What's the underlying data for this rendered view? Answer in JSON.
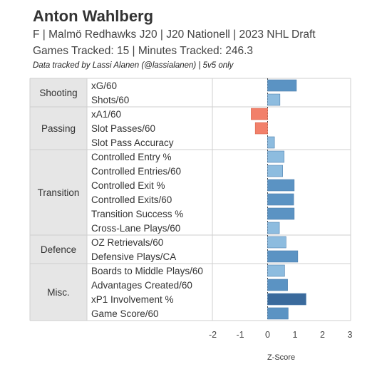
{
  "header": {
    "title": "Anton Wahlberg",
    "subtitle1": "F | Malmö Redhawks J20 | J20 Nationell | 2023 NHL Draft",
    "subtitle2": "Games Tracked: 15 | Minutes Tracked: 246.3",
    "credit": "Data tracked by Lassi Alanen (@lassialanen) | 5v5 only"
  },
  "chart_data": {
    "type": "bar",
    "orientation": "horizontal",
    "xlabel": "Z-Score",
    "xlim": [
      -2,
      3
    ],
    "xticks": [
      "-2",
      "-1",
      "0",
      "1",
      "2",
      "3"
    ],
    "zero_line": "dotted",
    "groups": [
      {
        "name": "Shooting",
        "metrics": [
          {
            "label": "xG/60",
            "value": 1.05
          },
          {
            "label": "Shots/60",
            "value": 0.45
          }
        ]
      },
      {
        "name": "Passing",
        "metrics": [
          {
            "label": "xA1/60",
            "value": -0.6
          },
          {
            "label": "Slot Passes/60",
            "value": -0.45
          },
          {
            "label": "Slot Pass Accuracy",
            "value": 0.25
          }
        ]
      },
      {
        "name": "Transition",
        "metrics": [
          {
            "label": "Controlled Entry %",
            "value": 0.6
          },
          {
            "label": "Controlled Entries/60",
            "value": 0.55
          },
          {
            "label": "Controlled Exit %",
            "value": 0.97
          },
          {
            "label": "Controlled Exits/60",
            "value": 0.95
          },
          {
            "label": "Transition Success %",
            "value": 0.97
          },
          {
            "label": "Cross-Lane Plays/60",
            "value": 0.43
          }
        ]
      },
      {
        "name": "Defence",
        "metrics": [
          {
            "label": "OZ Retrievals/60",
            "value": 0.67
          },
          {
            "label": "Defensive Plays/CA",
            "value": 1.1
          }
        ]
      },
      {
        "name": "Misc.",
        "metrics": [
          {
            "label": "Boards to Middle Plays/60",
            "value": 0.62
          },
          {
            "label": "Advantages Created/60",
            "value": 0.73
          },
          {
            "label": "xP1 Involvement %",
            "value": 1.4
          },
          {
            "label": "Game Score/60",
            "value": 0.75
          }
        ]
      }
    ],
    "colors": {
      "negative": "#f2806a",
      "negative_edge": "#d9684f",
      "light_positive": "#8dbcdf",
      "mid_positive": "#5b93c3",
      "strong_positive": "#3a6a9c",
      "group_bg": "#e6e6e6",
      "grid": "#cfcfcf"
    }
  }
}
